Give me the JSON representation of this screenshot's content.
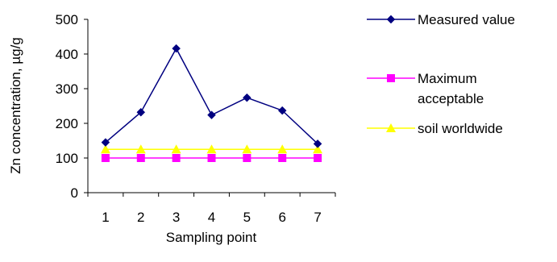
{
  "chart_data": {
    "type": "line",
    "title": "",
    "xlabel": "Sampling point",
    "ylabel": "Zn concentration, µg/g",
    "categories": [
      "1",
      "2",
      "3",
      "4",
      "5",
      "6",
      "7"
    ],
    "ylim": [
      0,
      500
    ],
    "yticks": [
      "0",
      "100",
      "200",
      "300",
      "400",
      "500"
    ],
    "grid": false,
    "legend_position": "right",
    "series": [
      {
        "name": "Measured value",
        "values": [
          145,
          232,
          416,
          224,
          274,
          237,
          141
        ],
        "color": "#000080",
        "marker": "diamond"
      },
      {
        "name": "Maximum acceptable",
        "values": [
          100,
          100,
          100,
          100,
          100,
          100,
          100
        ],
        "color": "#FF00FF",
        "marker": "square"
      },
      {
        "name": "soil worldwide",
        "values": [
          125,
          125,
          125,
          125,
          125,
          125,
          125
        ],
        "color": "#FFFF00",
        "marker": "triangle"
      }
    ]
  }
}
